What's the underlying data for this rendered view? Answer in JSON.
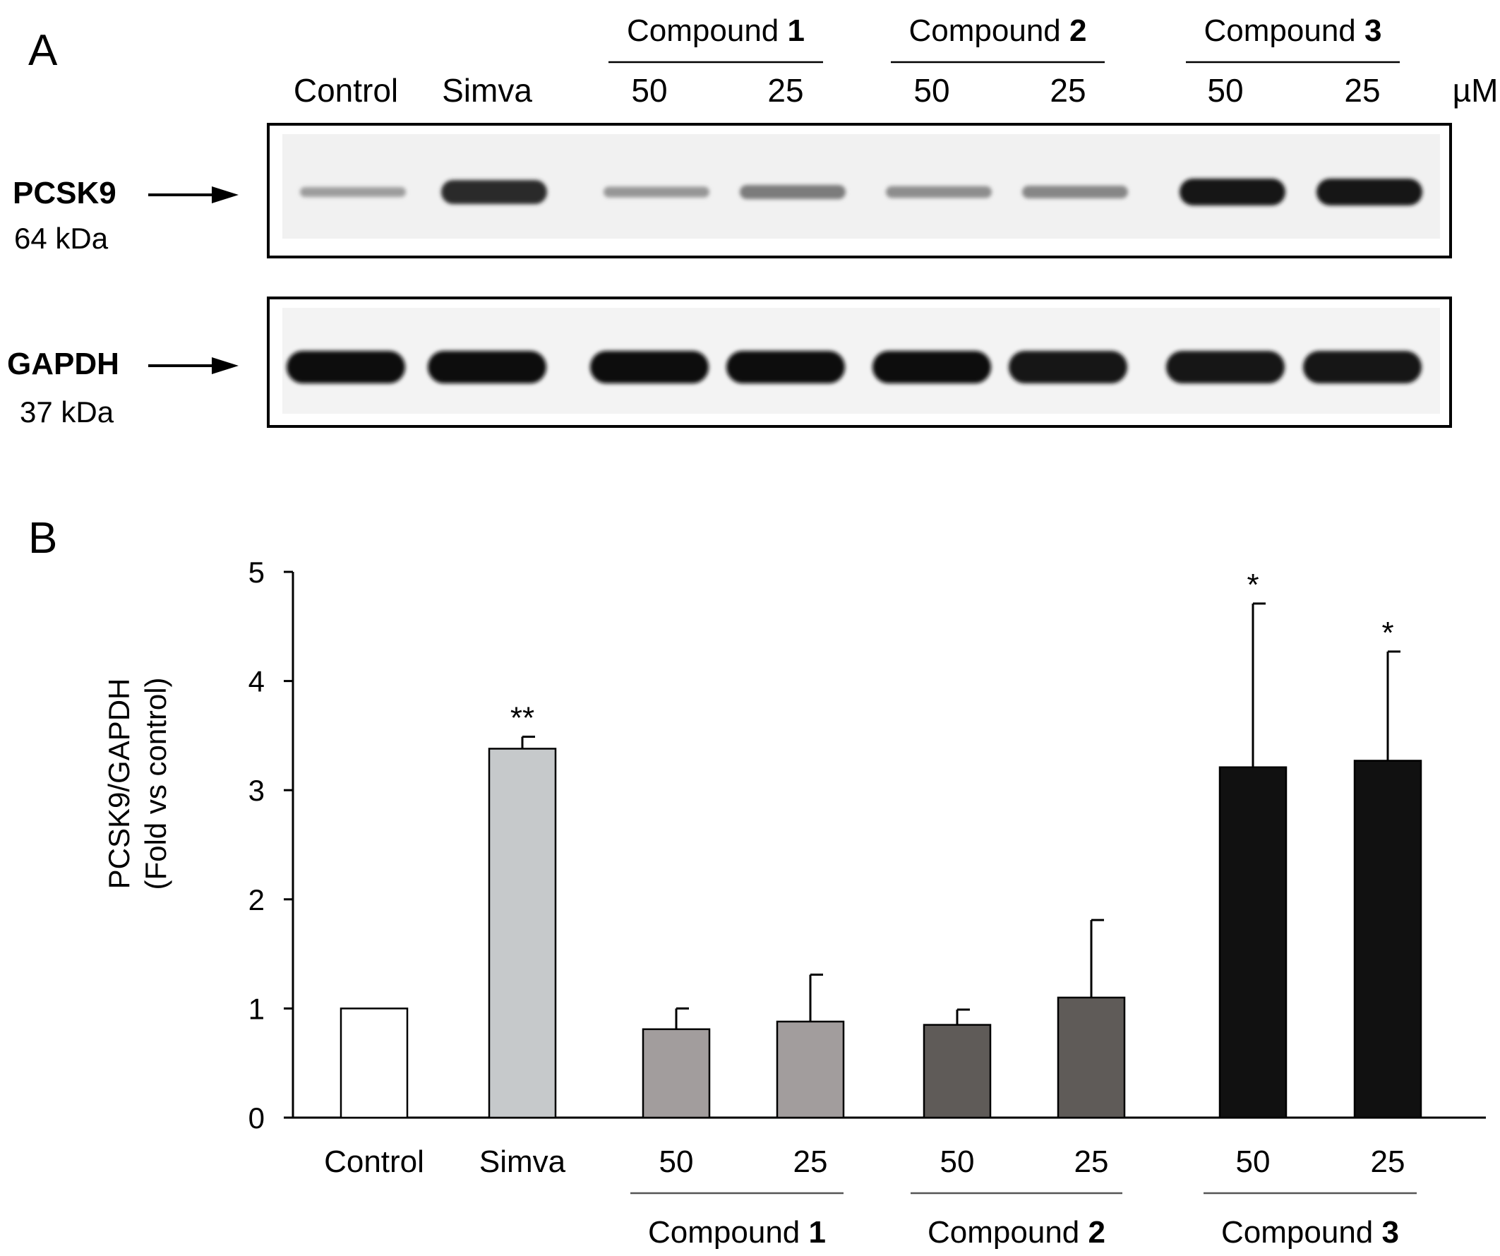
{
  "panel_a": {
    "label": "A",
    "lane_labels": [
      "Control",
      "Simva",
      "50",
      "25",
      "50",
      "25",
      "50",
      "25"
    ],
    "unit": "µM",
    "groups": [
      {
        "name": "Compound ",
        "number": "1"
      },
      {
        "name": "Compound ",
        "number": "2"
      },
      {
        "name": "Compound ",
        "number": "3"
      }
    ],
    "blots": [
      {
        "marker": "PCSK9",
        "size": "64 kDa",
        "band_intensity": [
          0.35,
          0.85,
          0.38,
          0.5,
          0.42,
          0.45,
          0.95,
          0.95
        ]
      },
      {
        "marker": "GAPDH",
        "size": "37 kDa",
        "band_intensity": [
          1,
          1,
          1,
          1,
          1,
          0.95,
          0.95,
          0.95
        ]
      }
    ]
  },
  "panel_b": {
    "label": "B",
    "groups": [
      {
        "name": "Compound ",
        "number": "1"
      },
      {
        "name": "Compound ",
        "number": "2"
      },
      {
        "name": "Compound ",
        "number": "3"
      }
    ]
  },
  "chart_data": {
    "type": "bar",
    "categories": [
      "Control",
      "Simva",
      "50",
      "25",
      "50",
      "25",
      "50",
      "25"
    ],
    "values": [
      1.0,
      3.38,
      0.81,
      0.88,
      0.85,
      1.1,
      3.21,
      3.27
    ],
    "errors": [
      0.0,
      0.11,
      0.19,
      0.43,
      0.14,
      0.71,
      1.5,
      1.0
    ],
    "significance": [
      "",
      "**",
      "",
      "",
      "",
      "",
      "*",
      "*"
    ],
    "colors": [
      "#ffffff",
      "#c6c9cb",
      "#a29d9d",
      "#a29d9d",
      "#5f5b58",
      "#5f5b58",
      "#111111",
      "#111111"
    ],
    "ylabel": [
      "PCSK9/GAPDH",
      "(Fold vs control)"
    ],
    "ylim": [
      0,
      5
    ],
    "yticks": [
      "0",
      "1",
      "2",
      "3",
      "4",
      "5"
    ]
  }
}
